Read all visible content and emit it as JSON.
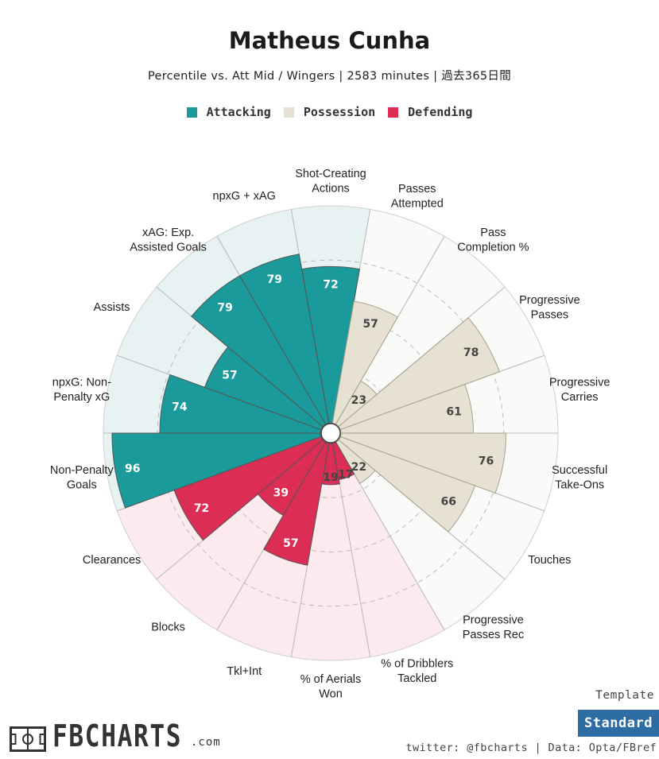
{
  "header": {
    "title": "Matheus Cunha",
    "subtitle": "Percentile vs. Att Mid / Wingers | 2583 minutes | 過去365日間"
  },
  "legend": [
    {
      "label": "Attacking",
      "color": "#1a9a9a"
    },
    {
      "label": "Possession",
      "color": "#e6e1d3"
    },
    {
      "label": "Defending",
      "color": "#dc2d55"
    }
  ],
  "colors": {
    "attacking": "#1a9a9a",
    "attacking_bg": "#e7f3f3",
    "possession": "#e6e1d3",
    "possession_bg": "#fafaf9",
    "defending": "#dc2d55",
    "defending_bg": "#fdeaee"
  },
  "chart_data": {
    "type": "polar-bar",
    "title": "Matheus Cunha",
    "rlim": [
      0,
      100
    ],
    "series": [
      {
        "label": "Shot-Creating\nActions",
        "value": 72,
        "group": "attacking"
      },
      {
        "label": "Passes\nAttempted",
        "value": 57,
        "group": "possession"
      },
      {
        "label": "Pass\nCompletion %",
        "value": 23,
        "group": "possession"
      },
      {
        "label": "Progressive\nPasses",
        "value": 78,
        "group": "possession"
      },
      {
        "label": "Progressive\nCarries",
        "value": 61,
        "group": "possession"
      },
      {
        "label": "Successful\nTake-Ons",
        "value": 76,
        "group": "possession"
      },
      {
        "label": "Touches",
        "value": 66,
        "group": "possession"
      },
      {
        "label": "Progressive\nPasses Rec",
        "value": 22,
        "group": "possession"
      },
      {
        "label": "% of Dribblers\nTackled",
        "value": 17,
        "group": "defending"
      },
      {
        "label": "% of Aerials\nWon",
        "value": 19,
        "group": "defending"
      },
      {
        "label": "Tkl+Int",
        "value": 57,
        "group": "defending"
      },
      {
        "label": "Blocks",
        "value": 39,
        "group": "defending"
      },
      {
        "label": "Clearances",
        "value": 72,
        "group": "defending"
      },
      {
        "label": "Non-Penalty\nGoals",
        "value": 96,
        "group": "attacking"
      },
      {
        "label": "npxG: Non-\nPenalty xG",
        "value": 74,
        "group": "attacking"
      },
      {
        "label": "Assists",
        "value": 57,
        "group": "attacking"
      },
      {
        "label": "xAG: Exp.\nAssisted Goals",
        "value": 79,
        "group": "attacking"
      },
      {
        "label": "npxG + xAG",
        "value": 79,
        "group": "attacking"
      }
    ]
  },
  "footer": {
    "template_label": "Template",
    "template_button": "Standard",
    "credits": "twitter: @fbcharts | Data: Opta/FBref",
    "logo_text": "FBCHARTS",
    "logo_suffix": ".com"
  }
}
